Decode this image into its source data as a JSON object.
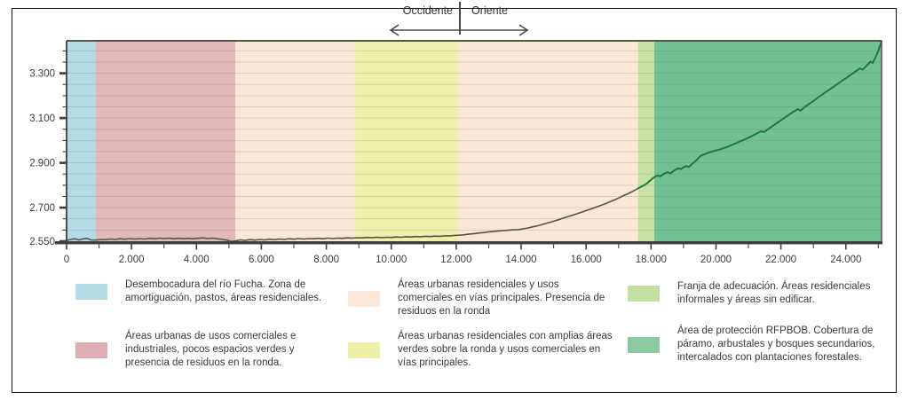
{
  "direction": {
    "west": "Occidente",
    "east": "Oriente"
  },
  "chart_data": {
    "type": "line",
    "title": "",
    "xlabel": "",
    "ylabel": "",
    "grid": "horizontal-minor",
    "legend_position": "bottom",
    "xlim": [
      0,
      25100
    ],
    "ylim": [
      2550,
      3445
    ],
    "x_minor_step": 1000,
    "y_minor_step": 50,
    "x_major_ticks": [
      {
        "v": 0,
        "label": "0"
      },
      {
        "v": 2000,
        "label": "2.000"
      },
      {
        "v": 4000,
        "label": "4.000"
      },
      {
        "v": 6000,
        "label": "6.000"
      },
      {
        "v": 8000,
        "label": "8.000"
      },
      {
        "v": 10000,
        "label": "10.000"
      },
      {
        "v": 12000,
        "label": "12.000"
      },
      {
        "v": 14000,
        "label": "14.000"
      },
      {
        "v": 16000,
        "label": "16.000"
      },
      {
        "v": 18000,
        "label": "18.000"
      },
      {
        "v": 20000,
        "label": "20.000"
      },
      {
        "v": 22000,
        "label": "22.000"
      },
      {
        "v": 24000,
        "label": "24.000"
      }
    ],
    "y_major_ticks": [
      {
        "v": 2550,
        "label": "2.550"
      },
      {
        "v": 2700,
        "label": "2.700"
      },
      {
        "v": 2900,
        "label": "2.900"
      },
      {
        "v": 3100,
        "label": "3.100"
      },
      {
        "v": 3300,
        "label": "3.300"
      }
    ],
    "zones": [
      {
        "name": "desembocadura",
        "from": 0,
        "to": 900,
        "color": "#b5dbe7"
      },
      {
        "name": "comercial-industrial",
        "from": 900,
        "to": 5200,
        "color": "#e2b8bb"
      },
      {
        "name": "residencial-comercial-oeste",
        "from": 5200,
        "to": 8900,
        "color": "#fbe7d5"
      },
      {
        "name": "residencial-areas-verdes",
        "from": 8900,
        "to": 12050,
        "color": "#eff0ab"
      },
      {
        "name": "residencial-comercial-este",
        "from": 12050,
        "to": 17600,
        "color": "#fbe7d5"
      },
      {
        "name": "franja-adecuacion",
        "from": 17600,
        "to": 18100,
        "color": "#c9e2a4"
      },
      {
        "name": "proteccion-rfpbob",
        "from": 18100,
        "to": 25100,
        "color": "#72c195"
      }
    ],
    "series": [
      {
        "name": "perfil-occidente",
        "color": "#54534a",
        "width": 1.6,
        "points": [
          [
            0,
            2553
          ],
          [
            120,
            2558
          ],
          [
            250,
            2561
          ],
          [
            380,
            2556
          ],
          [
            500,
            2560
          ],
          [
            620,
            2563
          ],
          [
            750,
            2556
          ],
          [
            900,
            2555
          ],
          [
            1050,
            2558
          ],
          [
            1200,
            2557
          ],
          [
            1350,
            2560
          ],
          [
            1500,
            2558
          ],
          [
            1650,
            2561
          ],
          [
            1800,
            2559
          ],
          [
            1950,
            2562
          ],
          [
            2100,
            2560
          ],
          [
            2250,
            2562
          ],
          [
            2400,
            2560
          ],
          [
            2550,
            2563
          ],
          [
            2700,
            2561
          ],
          [
            2850,
            2564
          ],
          [
            3000,
            2562
          ],
          [
            3150,
            2564
          ],
          [
            3300,
            2561
          ],
          [
            3450,
            2563
          ],
          [
            3600,
            2561
          ],
          [
            3750,
            2563
          ],
          [
            3900,
            2561
          ],
          [
            4050,
            2563
          ],
          [
            4200,
            2565
          ],
          [
            4350,
            2562
          ],
          [
            4500,
            2564
          ],
          [
            4650,
            2561
          ],
          [
            4800,
            2558
          ],
          [
            4950,
            2555
          ],
          [
            5060,
            2549
          ],
          [
            5200,
            2552
          ],
          [
            5350,
            2556
          ],
          [
            5500,
            2554
          ],
          [
            5650,
            2557
          ],
          [
            5800,
            2555
          ],
          [
            5950,
            2558
          ],
          [
            6100,
            2556
          ],
          [
            6250,
            2559
          ],
          [
            6400,
            2557
          ],
          [
            6550,
            2560
          ],
          [
            6700,
            2558
          ],
          [
            6850,
            2561
          ],
          [
            7000,
            2559
          ],
          [
            7150,
            2562
          ],
          [
            7300,
            2560
          ],
          [
            7450,
            2562
          ],
          [
            7600,
            2561
          ],
          [
            7750,
            2563
          ],
          [
            7900,
            2561
          ],
          [
            8050,
            2564
          ],
          [
            8200,
            2562
          ],
          [
            8350,
            2564
          ],
          [
            8500,
            2563
          ],
          [
            8650,
            2565
          ],
          [
            8800,
            2564
          ],
          [
            8950,
            2566
          ],
          [
            9100,
            2565
          ],
          [
            9250,
            2567
          ],
          [
            9400,
            2566
          ],
          [
            9550,
            2568
          ],
          [
            9700,
            2566
          ],
          [
            9850,
            2568
          ],
          [
            10000,
            2567
          ],
          [
            10150,
            2569
          ],
          [
            10300,
            2568
          ],
          [
            10450,
            2570
          ],
          [
            10600,
            2569
          ],
          [
            10750,
            2571
          ],
          [
            10900,
            2570
          ],
          [
            11050,
            2572
          ],
          [
            11200,
            2571
          ],
          [
            11350,
            2573
          ],
          [
            11500,
            2572
          ],
          [
            11650,
            2574
          ],
          [
            11800,
            2574
          ],
          [
            11950,
            2576
          ],
          [
            12100,
            2577
          ],
          [
            12250,
            2579
          ],
          [
            12400,
            2582
          ],
          [
            12550,
            2584
          ],
          [
            12700,
            2587
          ],
          [
            12850,
            2589
          ],
          [
            13000,
            2592
          ],
          [
            13150,
            2594
          ],
          [
            13300,
            2596
          ],
          [
            13450,
            2598
          ],
          [
            13600,
            2599
          ],
          [
            13750,
            2601
          ],
          [
            13900,
            2602
          ],
          [
            14050,
            2605
          ],
          [
            14200,
            2609
          ],
          [
            14350,
            2614
          ],
          [
            14500,
            2619
          ],
          [
            14650,
            2625
          ],
          [
            14800,
            2631
          ],
          [
            14950,
            2637
          ],
          [
            15100,
            2644
          ],
          [
            15250,
            2651
          ],
          [
            15400,
            2658
          ],
          [
            15550,
            2665
          ],
          [
            15700,
            2672
          ],
          [
            15850,
            2679
          ],
          [
            16000,
            2687
          ],
          [
            16150,
            2694
          ],
          [
            16300,
            2702
          ],
          [
            16450,
            2710
          ],
          [
            16600,
            2718
          ],
          [
            16750,
            2727
          ],
          [
            16900,
            2736
          ],
          [
            17000,
            2743
          ],
          [
            17100,
            2750
          ],
          [
            17200,
            2757
          ],
          [
            17300,
            2763
          ],
          [
            17400,
            2770
          ],
          [
            17500,
            2778
          ],
          [
            17600,
            2786
          ]
        ]
      },
      {
        "name": "perfil-oriente",
        "color": "#1b7a44",
        "width": 2,
        "points": [
          [
            17600,
            2786
          ],
          [
            17700,
            2794
          ],
          [
            17800,
            2801
          ],
          [
            17870,
            2808
          ],
          [
            17930,
            2816
          ],
          [
            18000,
            2824
          ],
          [
            18060,
            2832
          ],
          [
            18120,
            2838
          ],
          [
            18200,
            2843
          ],
          [
            18280,
            2840
          ],
          [
            18360,
            2848
          ],
          [
            18440,
            2854
          ],
          [
            18520,
            2858
          ],
          [
            18600,
            2853
          ],
          [
            18680,
            2862
          ],
          [
            18760,
            2870
          ],
          [
            18840,
            2876
          ],
          [
            18920,
            2872
          ],
          [
            19000,
            2880
          ],
          [
            19080,
            2886
          ],
          [
            19160,
            2882
          ],
          [
            19240,
            2892
          ],
          [
            19320,
            2902
          ],
          [
            19400,
            2912
          ],
          [
            19480,
            2925
          ],
          [
            19560,
            2934
          ],
          [
            19640,
            2938
          ],
          [
            19720,
            2943
          ],
          [
            19800,
            2947
          ],
          [
            19880,
            2951
          ],
          [
            19960,
            2954
          ],
          [
            20040,
            2957
          ],
          [
            20120,
            2960
          ],
          [
            20200,
            2964
          ],
          [
            20280,
            2968
          ],
          [
            20360,
            2972
          ],
          [
            20440,
            2977
          ],
          [
            20520,
            2982
          ],
          [
            20600,
            2987
          ],
          [
            20680,
            2992
          ],
          [
            20760,
            2997
          ],
          [
            20840,
            3002
          ],
          [
            20920,
            3007
          ],
          [
            21000,
            3012
          ],
          [
            21080,
            3018
          ],
          [
            21160,
            3024
          ],
          [
            21240,
            3030
          ],
          [
            21320,
            3036
          ],
          [
            21400,
            3042
          ],
          [
            21480,
            3037
          ],
          [
            21560,
            3046
          ],
          [
            21640,
            3054
          ],
          [
            21720,
            3062
          ],
          [
            21800,
            3070
          ],
          [
            21880,
            3078
          ],
          [
            21960,
            3086
          ],
          [
            22040,
            3094
          ],
          [
            22120,
            3102
          ],
          [
            22200,
            3110
          ],
          [
            22280,
            3118
          ],
          [
            22360,
            3126
          ],
          [
            22440,
            3133
          ],
          [
            22520,
            3140
          ],
          [
            22600,
            3133
          ],
          [
            22680,
            3143
          ],
          [
            22760,
            3152
          ],
          [
            22840,
            3160
          ],
          [
            22920,
            3168
          ],
          [
            23000,
            3176
          ],
          [
            23080,
            3185
          ],
          [
            23160,
            3194
          ],
          [
            23240,
            3202
          ],
          [
            23320,
            3210
          ],
          [
            23400,
            3218
          ],
          [
            23480,
            3226
          ],
          [
            23560,
            3234
          ],
          [
            23640,
            3242
          ],
          [
            23720,
            3250
          ],
          [
            23800,
            3258
          ],
          [
            23880,
            3266
          ],
          [
            23960,
            3274
          ],
          [
            24040,
            3282
          ],
          [
            24120,
            3290
          ],
          [
            24200,
            3298
          ],
          [
            24280,
            3306
          ],
          [
            24360,
            3314
          ],
          [
            24440,
            3322
          ],
          [
            24520,
            3316
          ],
          [
            24600,
            3328
          ],
          [
            24680,
            3340
          ],
          [
            24760,
            3352
          ],
          [
            24820,
            3346
          ],
          [
            24880,
            3362
          ],
          [
            24940,
            3380
          ],
          [
            25000,
            3400
          ],
          [
            25050,
            3422
          ],
          [
            25100,
            3443
          ]
        ]
      }
    ]
  },
  "legend": {
    "items": [
      {
        "swatch": "#b5dbe7",
        "text": "Desembocadura del río Fucha. Zona de amortiguación, pastos, áreas residenciales."
      },
      {
        "swatch": "#fbe8d8",
        "text": "Áreas urbanas residenciales y usos comerciales en vías principales. Presencia de residuos en la ronda"
      },
      {
        "swatch": "#c3dfa2",
        "text": "Franja de adecuación. Áreas residenciales informales y áreas sin edificar."
      },
      {
        "swatch": "#ddaeb2",
        "text": "Áreas urbanas de usos comerciales e industriales, pocos espacios verdes y presencia de residuos en la ronda."
      },
      {
        "swatch": "#eef0aa",
        "text": "Áreas urbanas residenciales con amplias áreas verdes sobre la ronda y usos comerciales en vías principales."
      },
      {
        "swatch": "#8cc9a0",
        "text": "Área de protección RFPBOB. Cobertura de páramo, arbustales y bosques secundarios, intercalados con plantaciones forestales."
      }
    ]
  }
}
